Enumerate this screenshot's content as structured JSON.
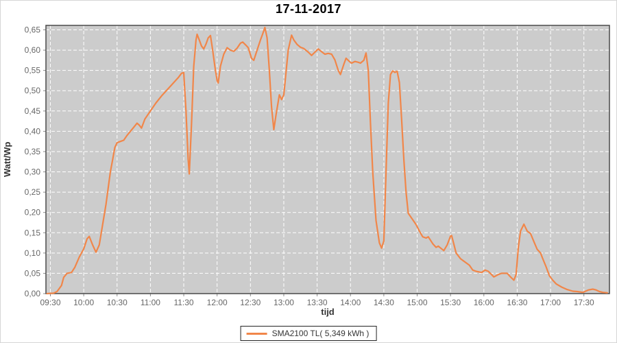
{
  "chart": {
    "title": "17-11-2017",
    "x_axis_label": "tijd",
    "y_axis_label": "Watt/Wp",
    "legend": {
      "label": "SMA2100 TL( 5,349 kWh )"
    }
  },
  "colors": {
    "series": "#f18649",
    "plot_bg": "#cccccc",
    "grid": "#ffffff",
    "plot_border": "#4a4a4a",
    "tick_mark": "#888888",
    "tick_text": "#666666",
    "title_text": "#000000",
    "axis_title_text": "#333333"
  },
  "chart_data": {
    "type": "line",
    "title": "17-11-2017",
    "xlabel": "tijd",
    "ylabel": "Watt/Wp",
    "grid": true,
    "legend_position": "bottom",
    "plot_background": "gray",
    "x_ticks": [
      "09:30",
      "10:00",
      "10:30",
      "11:00",
      "11:30",
      "12:00",
      "12:30",
      "13:00",
      "13:30",
      "14:00",
      "14:30",
      "15:00",
      "15:30",
      "16:00",
      "16:30",
      "17:00",
      "17:30"
    ],
    "y_ticks": [
      "0,00",
      "0,05",
      "0,10",
      "0,15",
      "0,20",
      "0,25",
      "0,30",
      "0,35",
      "0,40",
      "0,45",
      "0,50",
      "0,55",
      "0,60",
      "0,65"
    ],
    "y_tick_step": 0.05,
    "ylim": [
      0,
      0.661
    ],
    "xlim_minutes": [
      566,
      1073
    ],
    "series": [
      {
        "name": "SMA2100 TL( 5,349 kWh )",
        "color": "#f18649",
        "points": [
          [
            "09:27",
            0.0
          ],
          [
            "09:33",
            0.001
          ],
          [
            "09:36",
            0.005
          ],
          [
            "09:40",
            0.02
          ],
          [
            "09:42",
            0.04
          ],
          [
            "09:45",
            0.05
          ],
          [
            "09:49",
            0.052
          ],
          [
            "09:52",
            0.065
          ],
          [
            "09:56",
            0.09
          ],
          [
            "10:00",
            0.11
          ],
          [
            "10:03",
            0.135
          ],
          [
            "10:05",
            0.141
          ],
          [
            "10:08",
            0.12
          ],
          [
            "10:11",
            0.102
          ],
          [
            "10:14",
            0.12
          ],
          [
            "10:17",
            0.17
          ],
          [
            "10:20",
            0.22
          ],
          [
            "10:22",
            0.26
          ],
          [
            "10:24",
            0.3
          ],
          [
            "10:26",
            0.33
          ],
          [
            "10:28",
            0.36
          ],
          [
            "10:30",
            0.372
          ],
          [
            "10:33",
            0.375
          ],
          [
            "10:36",
            0.378
          ],
          [
            "10:39",
            0.39
          ],
          [
            "10:42",
            0.4
          ],
          [
            "10:45",
            0.41
          ],
          [
            "10:48",
            0.42
          ],
          [
            "10:50",
            0.415
          ],
          [
            "10:52",
            0.408
          ],
          [
            "10:55",
            0.43
          ],
          [
            "11:00",
            0.45
          ],
          [
            "11:05",
            0.47
          ],
          [
            "11:10",
            0.487
          ],
          [
            "11:16",
            0.505
          ],
          [
            "11:21",
            0.52
          ],
          [
            "11:25",
            0.532
          ],
          [
            "11:28",
            0.543
          ],
          [
            "11:30",
            0.545
          ],
          [
            "11:32",
            0.45
          ],
          [
            "11:34",
            0.33
          ],
          [
            "11:35",
            0.295
          ],
          [
            "11:37",
            0.42
          ],
          [
            "11:39",
            0.56
          ],
          [
            "11:41",
            0.625
          ],
          [
            "11:42",
            0.639
          ],
          [
            "11:44",
            0.625
          ],
          [
            "11:46",
            0.61
          ],
          [
            "11:48",
            0.603
          ],
          [
            "11:50",
            0.615
          ],
          [
            "11:52",
            0.63
          ],
          [
            "11:54",
            0.636
          ],
          [
            "11:56",
            0.6
          ],
          [
            "11:58",
            0.56
          ],
          [
            "12:00",
            0.525
          ],
          [
            "12:01",
            0.519
          ],
          [
            "12:03",
            0.56
          ],
          [
            "12:06",
            0.59
          ],
          [
            "12:09",
            0.606
          ],
          [
            "12:12",
            0.6
          ],
          [
            "12:15",
            0.597
          ],
          [
            "12:18",
            0.605
          ],
          [
            "12:21",
            0.617
          ],
          [
            "12:23",
            0.62
          ],
          [
            "12:26",
            0.612
          ],
          [
            "12:28",
            0.606
          ],
          [
            "12:31",
            0.58
          ],
          [
            "12:33",
            0.575
          ],
          [
            "12:36",
            0.6
          ],
          [
            "12:39",
            0.625
          ],
          [
            "12:41",
            0.64
          ],
          [
            "12:43",
            0.656
          ],
          [
            "12:45",
            0.63
          ],
          [
            "12:47",
            0.55
          ],
          [
            "12:49",
            0.46
          ],
          [
            "12:51",
            0.404
          ],
          [
            "12:53",
            0.44
          ],
          [
            "12:56",
            0.49
          ],
          [
            "12:58",
            0.478
          ],
          [
            "13:00",
            0.49
          ],
          [
            "13:02",
            0.545
          ],
          [
            "13:04",
            0.6
          ],
          [
            "13:07",
            0.637
          ],
          [
            "13:09",
            0.625
          ],
          [
            "13:12",
            0.614
          ],
          [
            "13:15",
            0.607
          ],
          [
            "13:18",
            0.604
          ],
          [
            "13:22",
            0.595
          ],
          [
            "13:25",
            0.587
          ],
          [
            "13:28",
            0.595
          ],
          [
            "13:31",
            0.603
          ],
          [
            "13:34",
            0.596
          ],
          [
            "13:37",
            0.59
          ],
          [
            "13:40",
            0.592
          ],
          [
            "13:43",
            0.59
          ],
          [
            "13:46",
            0.576
          ],
          [
            "13:49",
            0.55
          ],
          [
            "13:51",
            0.54
          ],
          [
            "13:54",
            0.565
          ],
          [
            "13:56",
            0.58
          ],
          [
            "13:59",
            0.572
          ],
          [
            "14:01",
            0.568
          ],
          [
            "14:04",
            0.572
          ],
          [
            "14:07",
            0.57
          ],
          [
            "14:09",
            0.568
          ],
          [
            "14:12",
            0.575
          ],
          [
            "14:14",
            0.593
          ],
          [
            "14:16",
            0.55
          ],
          [
            "14:18",
            0.42
          ],
          [
            "14:20",
            0.3
          ],
          [
            "14:23",
            0.18
          ],
          [
            "14:26",
            0.125
          ],
          [
            "14:28",
            0.112
          ],
          [
            "14:30",
            0.13
          ],
          [
            "14:32",
            0.3
          ],
          [
            "14:34",
            0.47
          ],
          [
            "14:36",
            0.54
          ],
          [
            "14:38",
            0.549
          ],
          [
            "14:40",
            0.545
          ],
          [
            "14:42",
            0.548
          ],
          [
            "14:44",
            0.52
          ],
          [
            "14:46",
            0.43
          ],
          [
            "14:48",
            0.33
          ],
          [
            "14:50",
            0.25
          ],
          [
            "14:52",
            0.198
          ],
          [
            "14:56",
            0.182
          ],
          [
            "14:59",
            0.17
          ],
          [
            "15:02",
            0.154
          ],
          [
            "15:05",
            0.14
          ],
          [
            "15:08",
            0.137
          ],
          [
            "15:10",
            0.14
          ],
          [
            "15:14",
            0.123
          ],
          [
            "15:17",
            0.114
          ],
          [
            "15:19",
            0.117
          ],
          [
            "15:24",
            0.106
          ],
          [
            "15:27",
            0.12
          ],
          [
            "15:30",
            0.142
          ],
          [
            "15:31",
            0.143
          ],
          [
            "15:35",
            0.1
          ],
          [
            "15:39",
            0.086
          ],
          [
            "15:43",
            0.078
          ],
          [
            "15:47",
            0.07
          ],
          [
            "15:50",
            0.058
          ],
          [
            "15:53",
            0.055
          ],
          [
            "15:58",
            0.052
          ],
          [
            "16:01",
            0.058
          ],
          [
            "16:04",
            0.055
          ],
          [
            "16:09",
            0.041
          ],
          [
            "16:13",
            0.047
          ],
          [
            "16:16",
            0.05
          ],
          [
            "16:21",
            0.05
          ],
          [
            "16:24",
            0.041
          ],
          [
            "16:27",
            0.033
          ],
          [
            "16:29",
            0.047
          ],
          [
            "16:31",
            0.114
          ],
          [
            "16:33",
            0.154
          ],
          [
            "16:36",
            0.171
          ],
          [
            "16:39",
            0.154
          ],
          [
            "16:42",
            0.148
          ],
          [
            "16:45",
            0.128
          ],
          [
            "16:48",
            0.109
          ],
          [
            "16:51",
            0.1
          ],
          [
            "16:53",
            0.086
          ],
          [
            "16:56",
            0.066
          ],
          [
            "16:59",
            0.044
          ],
          [
            "17:02",
            0.033
          ],
          [
            "17:05",
            0.024
          ],
          [
            "17:10",
            0.016
          ],
          [
            "17:15",
            0.01
          ],
          [
            "17:20",
            0.006
          ],
          [
            "17:24",
            0.005
          ],
          [
            "17:29",
            0.003
          ],
          [
            "17:34",
            0.009
          ],
          [
            "17:38",
            0.011
          ],
          [
            "17:41",
            0.009
          ],
          [
            "17:44",
            0.005
          ],
          [
            "17:47",
            0.003
          ],
          [
            "17:51",
            0.002
          ]
        ]
      }
    ]
  }
}
